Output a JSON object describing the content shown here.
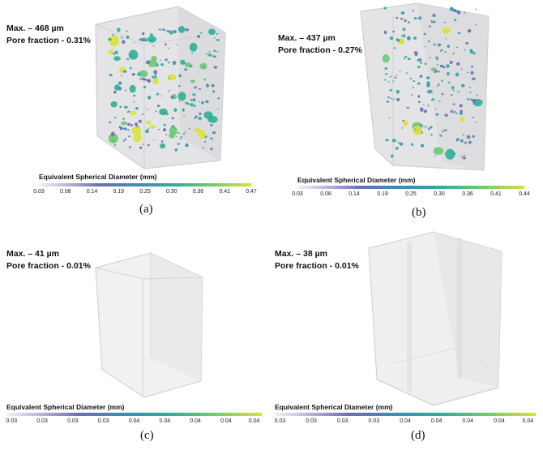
{
  "colormap": [
    "#f2f2f8",
    "#b7b0d6",
    "#6c6fb2",
    "#3e8fae",
    "#2fae9a",
    "#6cc774",
    "#d9e13a"
  ],
  "panels": [
    {
      "id": "a",
      "max_label": "Max. – 468  µm",
      "pore_label": "Pore fraction - 0.31%",
      "colorbar_title": "Equivalent Spherical Diameter (mm)",
      "colorbar_ticks": [
        "0.03",
        "0.08",
        "0.14",
        "0.19",
        "0.25",
        "0.30",
        "0.36",
        "0.41",
        "0.47"
      ],
      "caption": "(a)"
    },
    {
      "id": "b",
      "max_label": "Max. – 437  µm",
      "pore_label": "Pore fraction - 0.27%",
      "colorbar_title": "Equivalent Spherical Diameter (mm)",
      "colorbar_ticks": [
        "0.03",
        "0.08",
        "0.14",
        "0.19",
        "0.25",
        "0.30",
        "0.36",
        "0.41",
        "0.44"
      ],
      "caption": "(b)"
    },
    {
      "id": "c",
      "max_label": "Max. – 41  µm",
      "pore_label": "Pore fraction - 0.01%",
      "colorbar_title": "Equivalent Spherical Diameter (mm)",
      "colorbar_ticks": [
        "0.03",
        "0.03",
        "0.03",
        "0.03",
        "0.04",
        "0.04",
        "0.04",
        "0.04",
        "0.04"
      ],
      "caption": "(c)"
    },
    {
      "id": "d",
      "max_label": "Max. – 38  µm",
      "pore_label": "Pore fraction - 0.01%",
      "colorbar_title": "Equivalent Spherical Diameter (mm)",
      "colorbar_ticks": [
        "0.03",
        "0.03",
        "0.03",
        "0.03",
        "0.04",
        "0.04",
        "0.04",
        "0.04",
        "0.04"
      ],
      "caption": "(d)"
    }
  ]
}
